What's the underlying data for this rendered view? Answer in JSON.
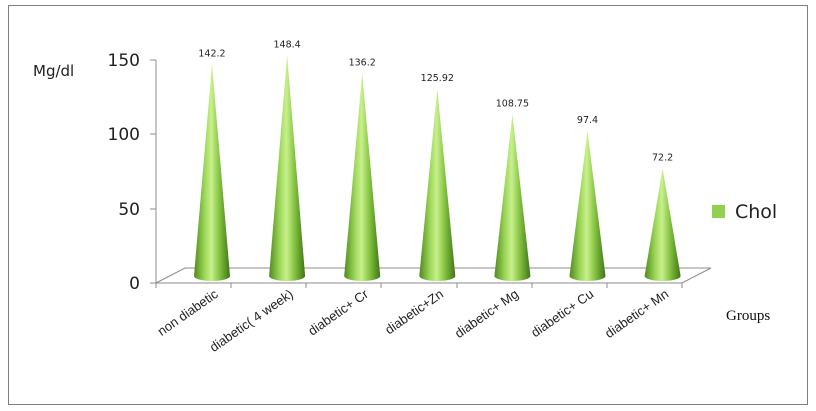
{
  "chart_data": {
    "type": "bar",
    "bar_shape": "cone",
    "ylabel": "Mg/dl",
    "xlabel": "Groups",
    "ylim": [
      0,
      150
    ],
    "yticks": [
      0,
      50,
      100,
      150
    ],
    "categories": [
      "non diabetic",
      "diabetic( 4 week)",
      "diabetic+ Cr",
      "diabetic+Zn",
      "diabetic+ Mg",
      "diabetic+ Cu",
      "diabetic+ Mn"
    ],
    "series": [
      {
        "name": "Chol",
        "color": "#92d050",
        "values": [
          142.2,
          148.4,
          136.2,
          125.92,
          108.75,
          97.4,
          72.2
        ],
        "labels": [
          "142.2",
          "148.4",
          "136.2",
          "125.92",
          "108.75",
          "97.4",
          "72.2"
        ]
      }
    ],
    "legend_position": "right",
    "grid": false
  }
}
